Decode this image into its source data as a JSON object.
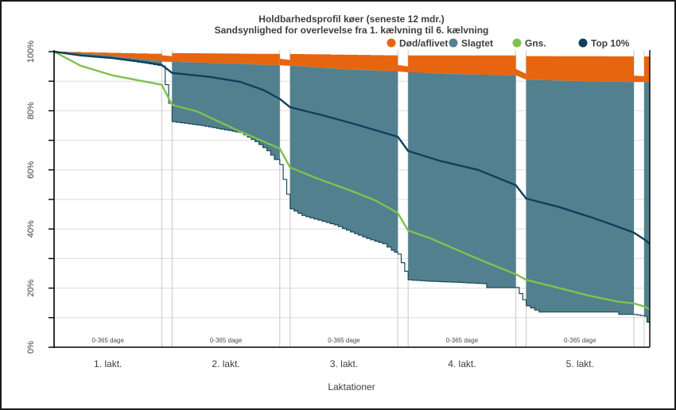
{
  "figure": {
    "border_color": "#1A1A1A",
    "background": "#FFFFFF"
  },
  "chart_data": {
    "type": "area",
    "title": "Holdbarhedsprofil køer (seneste 12 mdr.)",
    "subtitle": "Sandsynlighed for overlevelse fra 1. kælvning til 6. kælvning",
    "xlabel": "Laktationer",
    "ylabel": "",
    "units": "percent",
    "ylim": [
      0,
      100
    ],
    "y_tick_marks": [
      0,
      10,
      20,
      30,
      40,
      50,
      60,
      70,
      80,
      90,
      100
    ],
    "y_axis_labels": [
      {
        "value": 0,
        "label": "0%"
      },
      {
        "value": 20,
        "label": "20%"
      },
      {
        "value": 40,
        "label": "40%"
      },
      {
        "value": 60,
        "label": "60%"
      },
      {
        "value": 80,
        "label": "80%"
      },
      {
        "value": 100,
        "label": "100%"
      }
    ],
    "gridline_values": [
      10,
      20,
      30,
      40,
      50,
      60,
      70,
      80,
      90
    ],
    "grid": "on",
    "legend_position": "top-right",
    "legend": [
      {
        "id": "dead",
        "label": "Død/aflivet",
        "color": "#E7650F"
      },
      {
        "id": "slaughtered",
        "label": "Slagtet",
        "color": "#52808F"
      },
      {
        "id": "avg",
        "label": "Gns.",
        "color": "#7FC14E"
      },
      {
        "id": "top10",
        "label": "Top 10%",
        "color": "#123F5B"
      }
    ],
    "colors": {
      "dead": "#E7650F",
      "slaughtered": "#52808F",
      "avg": "#7FC14E",
      "top10": "#123F5B",
      "survival_line": "#1B4A5C",
      "grid": "#DBDBDB",
      "panel_border": "#C9C9C9",
      "axis": "#000000",
      "text": "#3E3E3E"
    },
    "panels": [
      {
        "label": "1. lakt.",
        "day_label": "0-365 dage",
        "dead_top": [
          [
            0,
            100
          ],
          [
            0.5,
            99.6
          ],
          [
            1,
            99.2
          ]
        ],
        "slaughtered_bottom": [
          [
            0,
            100
          ],
          [
            0.25,
            99.4
          ],
          [
            0.55,
            98.3
          ],
          [
            0.8,
            97.4
          ],
          [
            1,
            96.6
          ]
        ],
        "herd_survival": [
          [
            0,
            100
          ],
          [
            0.25,
            98.7
          ],
          [
            0.55,
            97.6
          ],
          [
            0.85,
            96.1
          ],
          [
            1,
            95.1
          ]
        ],
        "top10": [
          [
            0,
            100
          ],
          [
            0.25,
            98.7
          ],
          [
            0.55,
            97.8
          ],
          [
            0.8,
            96.6
          ],
          [
            1,
            95.5
          ]
        ],
        "avg": [
          [
            0,
            100
          ],
          [
            0.25,
            95.2
          ],
          [
            0.55,
            91.9
          ],
          [
            1,
            88.8
          ]
        ]
      },
      {
        "label": "2. lakt.",
        "day_label": "0-365 dage",
        "dead_top": [
          [
            0,
            99.5
          ],
          [
            1,
            99.2
          ]
        ],
        "slaughtered_bottom": [
          [
            0,
            96.5
          ],
          [
            0.5,
            96.0
          ],
          [
            0.85,
            95.5
          ],
          [
            1,
            95.4
          ]
        ],
        "herd_survival": [
          [
            0,
            76.3
          ],
          [
            0.27,
            75.0
          ],
          [
            0.63,
            72.6
          ],
          [
            0.77,
            69.6
          ],
          [
            0.88,
            66.5
          ],
          [
            0.95,
            63.5
          ],
          [
            1,
            61.8
          ]
        ],
        "top10": [
          [
            0,
            92.8
          ],
          [
            0.34,
            91.5
          ],
          [
            0.63,
            89.8
          ],
          [
            0.85,
            87.0
          ],
          [
            1,
            84.0
          ]
        ],
        "avg": [
          [
            0,
            82.0
          ],
          [
            0.23,
            79.8
          ],
          [
            0.63,
            73.0
          ],
          [
            1,
            67.2
          ]
        ]
      },
      {
        "label": "3. lakt.",
        "day_label": "0-365 dage",
        "dead_top": [
          [
            0,
            99.2
          ],
          [
            1,
            98.7
          ]
        ],
        "slaughtered_bottom": [
          [
            0,
            95.2
          ],
          [
            0.5,
            94.0
          ],
          [
            1,
            93.3
          ]
        ],
        "herd_survival": [
          [
            0,
            46.8
          ],
          [
            0.11,
            44.6
          ],
          [
            0.26,
            43.0
          ],
          [
            0.41,
            41.4
          ],
          [
            0.56,
            39.0
          ],
          [
            0.71,
            36.8
          ],
          [
            0.86,
            35.0
          ],
          [
            0.94,
            32.8
          ],
          [
            1,
            31.5
          ]
        ],
        "top10": [
          [
            0,
            81.2
          ],
          [
            0.3,
            78.5
          ],
          [
            0.6,
            75.5
          ],
          [
            1,
            71.2
          ]
        ],
        "avg": [
          [
            0,
            60.8
          ],
          [
            0.26,
            57.0
          ],
          [
            0.56,
            53.0
          ],
          [
            0.79,
            49.7
          ],
          [
            1,
            45.4
          ]
        ]
      },
      {
        "label": "4. lakt.",
        "day_label": "0-365 dage",
        "dead_top": [
          [
            0,
            98.7
          ],
          [
            1,
            98.7
          ]
        ],
        "slaughtered_bottom": [
          [
            0,
            93.0
          ],
          [
            0.5,
            92.3
          ],
          [
            1,
            92.0
          ]
        ],
        "herd_survival": [
          [
            0,
            22.8
          ],
          [
            0.2,
            22.3
          ],
          [
            0.43,
            22.0
          ],
          [
            0.7,
            21.5
          ],
          [
            0.73,
            20.2
          ],
          [
            1,
            20.2
          ]
        ],
        "top10": [
          [
            0,
            66.4
          ],
          [
            0.3,
            63.0
          ],
          [
            0.65,
            60.0
          ],
          [
            1,
            54.8
          ]
        ],
        "avg": [
          [
            0,
            39.5
          ],
          [
            0.21,
            36.8
          ],
          [
            0.43,
            33.3
          ],
          [
            0.72,
            28.8
          ],
          [
            1,
            24.7
          ]
        ]
      },
      {
        "label": "5. lakt.",
        "day_label": "0-365 dage",
        "dead_top": [
          [
            0,
            98.5
          ],
          [
            1,
            98.4
          ]
        ],
        "slaughtered_bottom": [
          [
            0,
            90.5
          ],
          [
            0.5,
            90.0
          ],
          [
            1,
            89.7
          ]
        ],
        "herd_survival": [
          [
            0,
            14.0
          ],
          [
            0.08,
            12.6
          ],
          [
            0.12,
            11.9
          ],
          [
            0.83,
            11.9
          ],
          [
            0.86,
            11.1
          ],
          [
            1,
            11.1
          ]
        ],
        "top10": [
          [
            0,
            50.3
          ],
          [
            0.3,
            47.5
          ],
          [
            0.6,
            44.0
          ],
          [
            0.85,
            40.8
          ],
          [
            1,
            38.8
          ]
        ],
        "avg": [
          [
            0,
            22.8
          ],
          [
            0.29,
            20.2
          ],
          [
            0.58,
            17.5
          ],
          [
            0.84,
            15.5
          ],
          [
            1,
            14.8
          ]
        ]
      }
    ],
    "tail": {
      "label": "",
      "day_label": "",
      "dead_top": [
        [
          0,
          98.4
        ],
        [
          1,
          98.4
        ]
      ],
      "slaughtered_bottom": [
        [
          0,
          89.7
        ],
        [
          1,
          89.4
        ]
      ],
      "herd_survival": [
        [
          0,
          10.5
        ],
        [
          0.5,
          8.5
        ],
        [
          1,
          6.7
        ]
      ],
      "top10": [
        [
          0,
          36.5
        ],
        [
          1,
          35.0
        ]
      ],
      "avg": [
        [
          0,
          13.8
        ],
        [
          1,
          12.8
        ]
      ]
    }
  }
}
